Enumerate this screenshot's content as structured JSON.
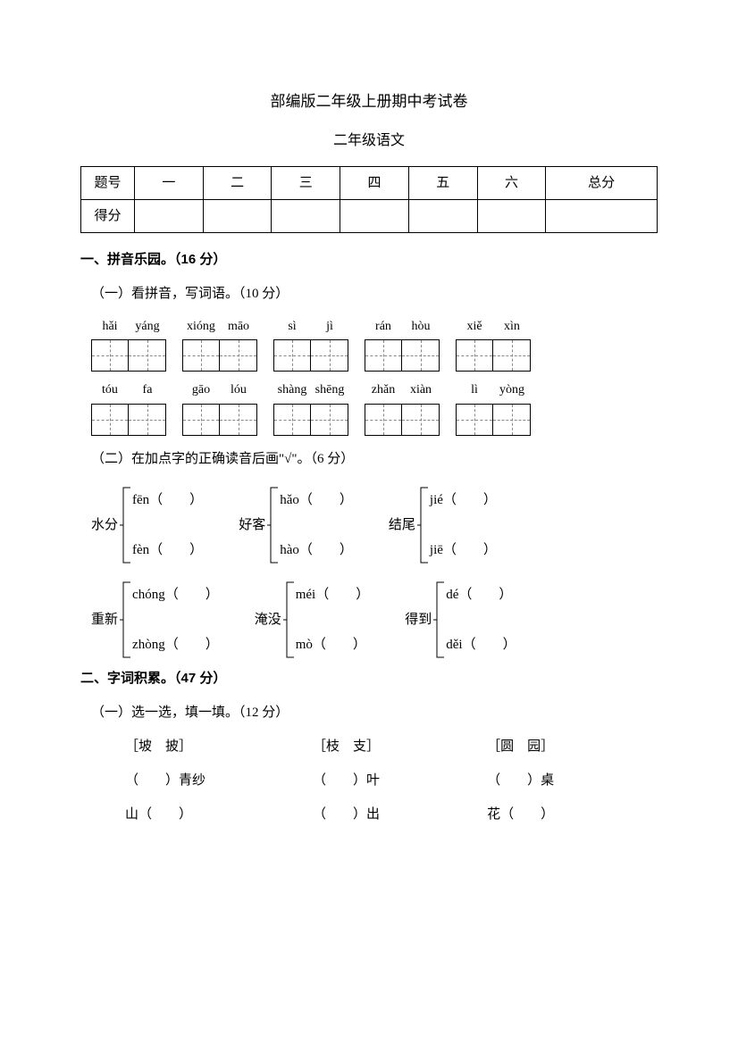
{
  "title": "部编版二年级上册期中考试卷",
  "subtitle": "二年级语文",
  "scoreTable": {
    "row1": [
      "题号",
      "一",
      "二",
      "三",
      "四",
      "五",
      "六",
      "总分"
    ],
    "row2Label": "得分"
  },
  "section1": {
    "heading": "一、拼音乐园。（16 分）",
    "sub1": {
      "heading": "（一）看拼音，写词语。（10 分）",
      "row1": [
        [
          "hǎi",
          "yáng"
        ],
        [
          "xióng",
          "māo"
        ],
        [
          "sì",
          "jì"
        ],
        [
          "rán",
          "hòu"
        ],
        [
          "xiě",
          "xìn"
        ]
      ],
      "row2": [
        [
          "tóu",
          "fa"
        ],
        [
          "gāo",
          "lóu"
        ],
        [
          "shàng",
          "shēng"
        ],
        [
          "zhǎn",
          "xiàn"
        ],
        [
          "lì",
          "yòng"
        ]
      ]
    },
    "sub2": {
      "heading": "（二）在加点字的正确读音后画\"√\"。（6 分）",
      "row1": [
        {
          "labelPre": "水",
          "labelDot": "分",
          "opt1": "fēn",
          "opt2": "fèn"
        },
        {
          "labelPre": "",
          "labelDot": "好",
          "labelPost": "客",
          "opt1": "hǎo",
          "opt2": "hào"
        },
        {
          "labelPre": "",
          "labelDot": "结",
          "labelPost": "尾",
          "opt1": "jié",
          "opt2": "jiē"
        }
      ],
      "row2": [
        {
          "labelPre": "",
          "labelDot": "重",
          "labelPost": "新",
          "opt1": "chóng",
          "opt2": "zhòng"
        },
        {
          "labelPre": "淹",
          "labelDot": "没",
          "opt1": "méi",
          "opt2": "mò"
        },
        {
          "labelPre": "",
          "labelDot": "得",
          "labelPost": "到",
          "opt1": "dé",
          "opt2": "děi"
        }
      ]
    }
  },
  "section2": {
    "heading": "二、字词积累。（47 分）",
    "sub1": {
      "heading": "（一）选一选，填一填。（12 分）",
      "groups": [
        {
          "header": "［坡　披］",
          "line1pre": "（　　）",
          "line1post": "青纱",
          "line2pre": "山",
          "line2post": "（　　）"
        },
        {
          "header": "［枝　支］",
          "line1pre": "（　　）",
          "line1post": "叶",
          "line2pre": "（　　）",
          "line2post": "出"
        },
        {
          "header": "［圆　园］",
          "line1pre": "（　　）",
          "line1post": "桌",
          "line2pre": "花",
          "line2post": "（　　）"
        }
      ]
    }
  }
}
